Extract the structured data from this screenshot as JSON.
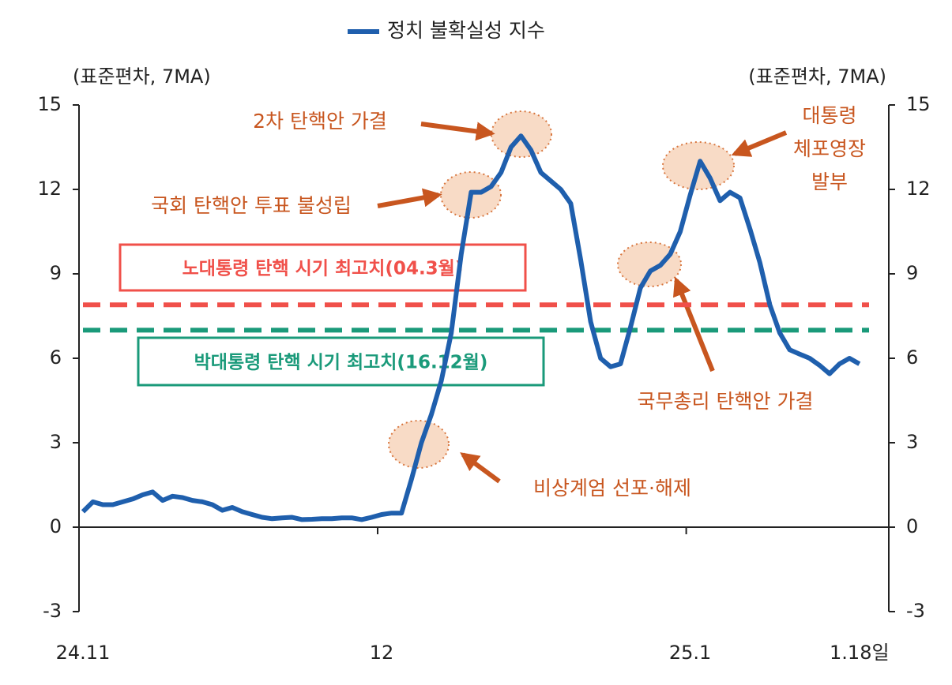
{
  "chart_data": {
    "type": "line",
    "legend": "정치 불확실성 지수",
    "y_label": "(표준편차, 7MA)",
    "y2_label": "(표준편차, 7MA)",
    "categories": [
      "24.11",
      null,
      null,
      null,
      null,
      null,
      null,
      null,
      null,
      null,
      null,
      null,
      null,
      null,
      null,
      null,
      null,
      null,
      null,
      null,
      null,
      null,
      null,
      null,
      null,
      null,
      null,
      null,
      null,
      null,
      "12",
      null,
      null,
      null,
      null,
      null,
      null,
      null,
      null,
      null,
      null,
      null,
      null,
      null,
      null,
      null,
      null,
      null,
      null,
      null,
      null,
      null,
      null,
      null,
      null,
      null,
      null,
      null,
      null,
      null,
      null,
      "25.1",
      null,
      null,
      null,
      null,
      null,
      null,
      null,
      null,
      null,
      null,
      null,
      null,
      null,
      null,
      null,
      null,
      "1.18일"
    ],
    "series": [
      {
        "name": "정치 불확실성 지수",
        "color": "#1f5fad",
        "values": [
          0.55,
          0.9,
          0.8,
          0.8,
          0.9,
          1.0,
          1.15,
          1.25,
          0.95,
          1.1,
          1.05,
          0.95,
          0.9,
          0.8,
          0.6,
          0.7,
          0.55,
          0.45,
          0.35,
          0.3,
          0.33,
          0.35,
          0.27,
          0.28,
          0.3,
          0.3,
          0.33,
          0.33,
          0.27,
          0.35,
          0.45,
          0.5,
          0.5,
          1.7,
          3.0,
          4.0,
          5.2,
          6.9,
          9.7,
          11.9,
          11.9,
          12.1,
          12.6,
          13.5,
          13.9,
          13.4,
          12.6,
          12.3,
          12.0,
          11.5,
          9.5,
          7.3,
          6.0,
          5.7,
          5.8,
          7.1,
          8.5,
          9.1,
          9.3,
          9.7,
          10.5,
          11.8,
          13.0,
          12.4,
          11.6,
          11.9,
          11.7,
          10.6,
          9.4,
          7.9,
          6.9,
          6.3,
          6.15,
          6.0,
          5.75,
          5.45,
          5.8,
          6.0,
          5.8
        ]
      }
    ],
    "ylim": [
      -3,
      15
    ],
    "yticks": [
      -3,
      0,
      3,
      6,
      9,
      12,
      15
    ],
    "y2lim": [
      -3,
      15
    ],
    "y2ticks": [
      -3,
      0,
      3,
      6,
      9,
      12,
      15
    ],
    "reference_lines": [
      {
        "label": "노대통령 탄핵 시기 최고치(04.3월)",
        "value": 7.9,
        "color": "#f0504a"
      },
      {
        "label": "박대통령 탄핵 시기 최고치(16.12월)",
        "value": 7.0,
        "color": "#1a9a7a"
      }
    ],
    "annotations": [
      "2차 탄핵안 가결",
      "국회 탄핵안 투표 불성립",
      "비상계엄 선포·해제",
      "국무총리 탄핵안 가결",
      [
        "대통령",
        "체포영장",
        "발부"
      ]
    ]
  }
}
